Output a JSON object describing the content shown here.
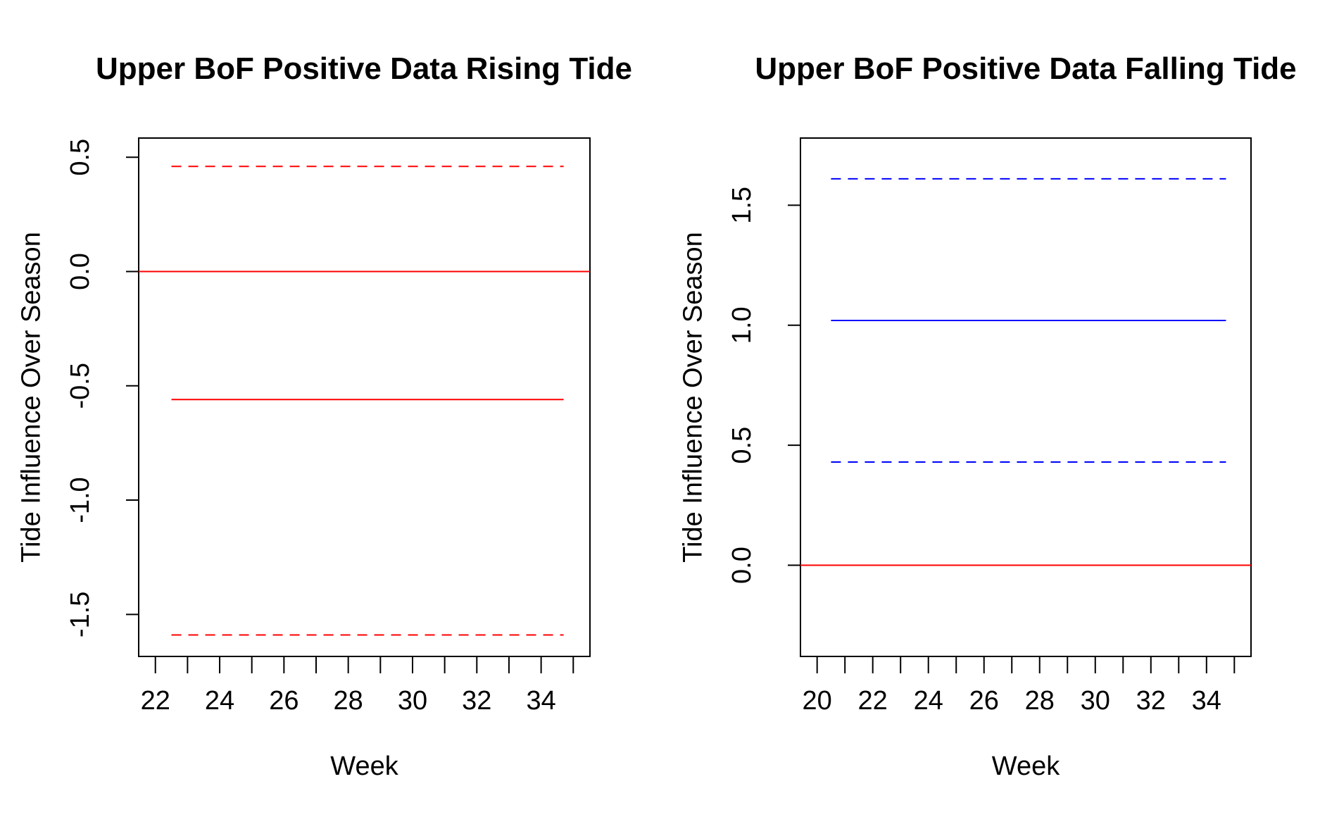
{
  "chart_data": [
    {
      "type": "line",
      "title": "Upper BoF Positive Data Rising Tide",
      "xlabel": "Week",
      "ylabel": "Tide Influence Over Season",
      "xlim": [
        22,
        35
      ],
      "ylim": [
        -1.6,
        0.5
      ],
      "x_ticks": [
        22,
        24,
        26,
        28,
        30,
        32,
        34
      ],
      "x_minor_ticks": [
        22,
        23,
        24,
        25,
        26,
        27,
        28,
        29,
        30,
        31,
        32,
        33,
        34,
        35
      ],
      "y_ticks": [
        0.5,
        0.0,
        -0.5,
        -1.0,
        -1.5
      ],
      "y_tick_labels": [
        "0.5",
        "0.0",
        "-0.5",
        "-1.0",
        "-1.5"
      ],
      "series": [
        {
          "x": [
            22.5,
            34.7
          ],
          "y": [
            -0.56,
            -0.56
          ],
          "color": "#ff0000",
          "style": "solid"
        },
        {
          "x": [
            22.5,
            34.7
          ],
          "y": [
            0.46,
            0.46
          ],
          "color": "#ff0000",
          "style": "dashed"
        },
        {
          "x": [
            22.5,
            34.7
          ],
          "y": [
            -1.59,
            -1.59
          ],
          "color": "#ff0000",
          "style": "dashed"
        }
      ],
      "reference_line": {
        "y": 0.0,
        "color": "#ff0000"
      }
    },
    {
      "type": "line",
      "title": "Upper BoF Positive Data Falling Tide",
      "xlabel": "Week",
      "ylabel": "Tide Influence Over Season",
      "xlim": [
        20,
        35
      ],
      "ylim": [
        -0.3,
        1.7
      ],
      "x_ticks": [
        20,
        22,
        24,
        26,
        28,
        30,
        32,
        34
      ],
      "x_minor_ticks": [
        20,
        21,
        22,
        23,
        24,
        25,
        26,
        27,
        28,
        29,
        30,
        31,
        32,
        33,
        34,
        35
      ],
      "y_ticks": [
        0.0,
        0.5,
        1.0,
        1.5
      ],
      "y_tick_labels": [
        "0.0",
        "0.5",
        "1.0",
        "1.5"
      ],
      "series": [
        {
          "x": [
            20.5,
            34.7
          ],
          "y": [
            1.02,
            1.02
          ],
          "color": "#0000ff",
          "style": "solid"
        },
        {
          "x": [
            20.5,
            34.7
          ],
          "y": [
            1.61,
            1.61
          ],
          "color": "#0000ff",
          "style": "dashed"
        },
        {
          "x": [
            20.5,
            34.7
          ],
          "y": [
            0.43,
            0.43
          ],
          "color": "#0000ff",
          "style": "dashed"
        }
      ],
      "reference_line": {
        "y": 0.0,
        "color": "#ff0000"
      }
    }
  ]
}
